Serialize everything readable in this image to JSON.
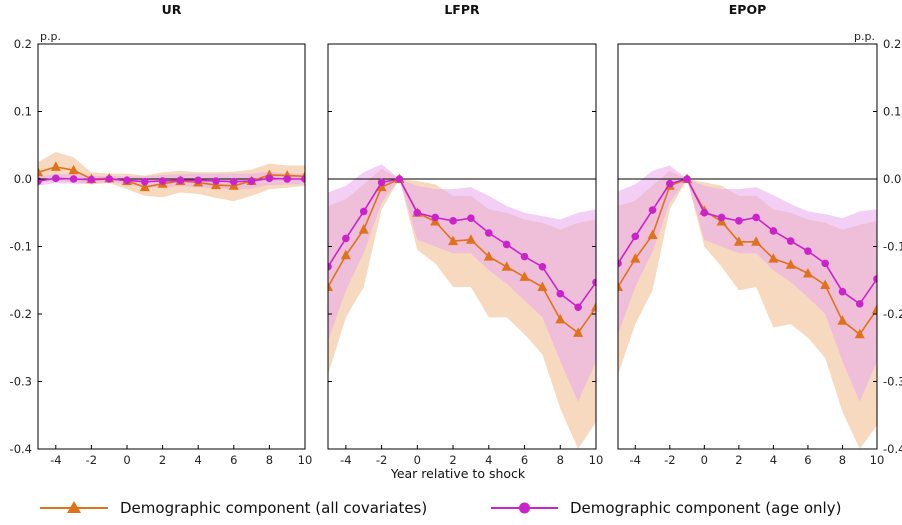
{
  "chart_data": {
    "type": "line",
    "xlabel": "Year relative to shock",
    "unit_label": "p.p.",
    "xlim": [
      -5,
      10
    ],
    "ylim": [
      -0.4,
      0.2
    ],
    "x": [
      -5,
      -4,
      -3,
      -2,
      -1,
      0,
      1,
      2,
      3,
      4,
      5,
      6,
      7,
      8,
      9,
      10
    ],
    "x_ticks": [
      -4,
      -2,
      0,
      2,
      4,
      6,
      8,
      10
    ],
    "y_ticks": [
      -0.4,
      -0.3,
      -0.2,
      -0.1,
      0.0,
      0.1,
      0.2
    ],
    "y_tick_labels": [
      "-0.4",
      "-0.3",
      "-0.2",
      "-0.1",
      "0.0",
      "0.1",
      "0.2"
    ],
    "legend_position": "bottom",
    "colors": {
      "all": "#e0731a",
      "age": "#cc22cc",
      "band_all": "#f6d2b4",
      "band_age": "#e9a8ec",
      "band_overlap": "#eeb2c2"
    },
    "series": [
      {
        "name": "Demographic component (all covariates)",
        "key": "all",
        "marker": "triangle"
      },
      {
        "name": "Demographic component (age only)",
        "key": "age",
        "marker": "circle"
      }
    ],
    "panels": [
      {
        "title": "UR",
        "all": [
          0.01,
          0.018,
          0.013,
          0.0,
          0.001,
          -0.003,
          -0.012,
          -0.007,
          -0.003,
          -0.005,
          -0.009,
          -0.01,
          -0.003,
          0.006,
          0.005,
          0.004
        ],
        "all_lo": [
          -0.005,
          -0.003,
          -0.005,
          -0.008,
          -0.006,
          -0.015,
          -0.025,
          -0.027,
          -0.02,
          -0.022,
          -0.028,
          -0.033,
          -0.025,
          -0.015,
          -0.013,
          -0.01
        ],
        "all_hi": [
          0.025,
          0.04,
          0.032,
          0.01,
          0.008,
          0.008,
          0.005,
          0.01,
          0.012,
          0.01,
          0.01,
          0.011,
          0.014,
          0.023,
          0.02,
          0.02
        ],
        "age": [
          -0.003,
          0.001,
          0.0,
          -0.001,
          0.0,
          -0.002,
          -0.004,
          -0.003,
          -0.002,
          -0.002,
          -0.003,
          -0.004,
          -0.003,
          0.001,
          0.0,
          0.0
        ],
        "age_lo": [
          -0.01,
          -0.006,
          -0.007,
          -0.007,
          -0.004,
          -0.008,
          -0.012,
          -0.012,
          -0.011,
          -0.012,
          -0.014,
          -0.016,
          -0.014,
          -0.009,
          -0.008,
          -0.008
        ],
        "age_hi": [
          0.004,
          0.007,
          0.007,
          0.005,
          0.004,
          0.004,
          0.004,
          0.006,
          0.007,
          0.008,
          0.008,
          0.008,
          0.008,
          0.011,
          0.008,
          0.008
        ]
      },
      {
        "title": "LFPR",
        "all": [
          -0.16,
          -0.113,
          -0.075,
          -0.012,
          0.0,
          -0.05,
          -0.063,
          -0.092,
          -0.09,
          -0.115,
          -0.13,
          -0.145,
          -0.16,
          -0.208,
          -0.228,
          -0.19
        ],
        "all_lo": [
          -0.29,
          -0.205,
          -0.16,
          -0.045,
          0.0,
          -0.105,
          -0.125,
          -0.16,
          -0.16,
          -0.205,
          -0.205,
          -0.23,
          -0.26,
          -0.34,
          -0.4,
          -0.36
        ],
        "all_hi": [
          -0.04,
          -0.03,
          -0.008,
          0.015,
          0.0,
          -0.003,
          -0.008,
          -0.025,
          -0.025,
          -0.045,
          -0.05,
          -0.06,
          -0.065,
          -0.075,
          -0.065,
          -0.06
        ],
        "age": [
          -0.13,
          -0.088,
          -0.048,
          -0.005,
          0.0,
          -0.05,
          -0.057,
          -0.062,
          -0.058,
          -0.08,
          -0.097,
          -0.115,
          -0.13,
          -0.17,
          -0.19,
          -0.153
        ],
        "age_lo": [
          -0.24,
          -0.165,
          -0.11,
          -0.035,
          0.0,
          -0.09,
          -0.1,
          -0.11,
          -0.11,
          -0.135,
          -0.155,
          -0.18,
          -0.205,
          -0.27,
          -0.33,
          -0.27
        ],
        "age_hi": [
          -0.02,
          -0.01,
          0.01,
          0.022,
          0.0,
          -0.01,
          -0.015,
          -0.015,
          -0.012,
          -0.025,
          -0.04,
          -0.05,
          -0.055,
          -0.06,
          -0.05,
          -0.045
        ]
      },
      {
        "title": "EPOP",
        "all": [
          -0.16,
          -0.118,
          -0.083,
          -0.01,
          0.0,
          -0.047,
          -0.063,
          -0.093,
          -0.093,
          -0.118,
          -0.127,
          -0.14,
          -0.157,
          -0.21,
          -0.23,
          -0.193
        ],
        "all_lo": [
          -0.29,
          -0.215,
          -0.165,
          -0.045,
          0.0,
          -0.1,
          -0.13,
          -0.165,
          -0.16,
          -0.22,
          -0.215,
          -0.235,
          -0.265,
          -0.345,
          -0.4,
          -0.365
        ],
        "all_hi": [
          -0.04,
          -0.032,
          -0.01,
          0.012,
          0.0,
          -0.005,
          -0.01,
          -0.025,
          -0.025,
          -0.045,
          -0.05,
          -0.06,
          -0.065,
          -0.075,
          -0.068,
          -0.062
        ],
        "age": [
          -0.125,
          -0.085,
          -0.046,
          -0.007,
          0.0,
          -0.05,
          -0.057,
          -0.062,
          -0.057,
          -0.077,
          -0.092,
          -0.107,
          -0.125,
          -0.167,
          -0.185,
          -0.148
        ],
        "age_lo": [
          -0.23,
          -0.16,
          -0.108,
          -0.035,
          0.0,
          -0.09,
          -0.1,
          -0.11,
          -0.11,
          -0.135,
          -0.153,
          -0.175,
          -0.2,
          -0.27,
          -0.33,
          -0.27
        ],
        "age_hi": [
          -0.018,
          -0.008,
          0.012,
          0.02,
          0.0,
          -0.01,
          -0.015,
          -0.015,
          -0.012,
          -0.024,
          -0.037,
          -0.048,
          -0.052,
          -0.058,
          -0.048,
          -0.045
        ]
      }
    ]
  }
}
